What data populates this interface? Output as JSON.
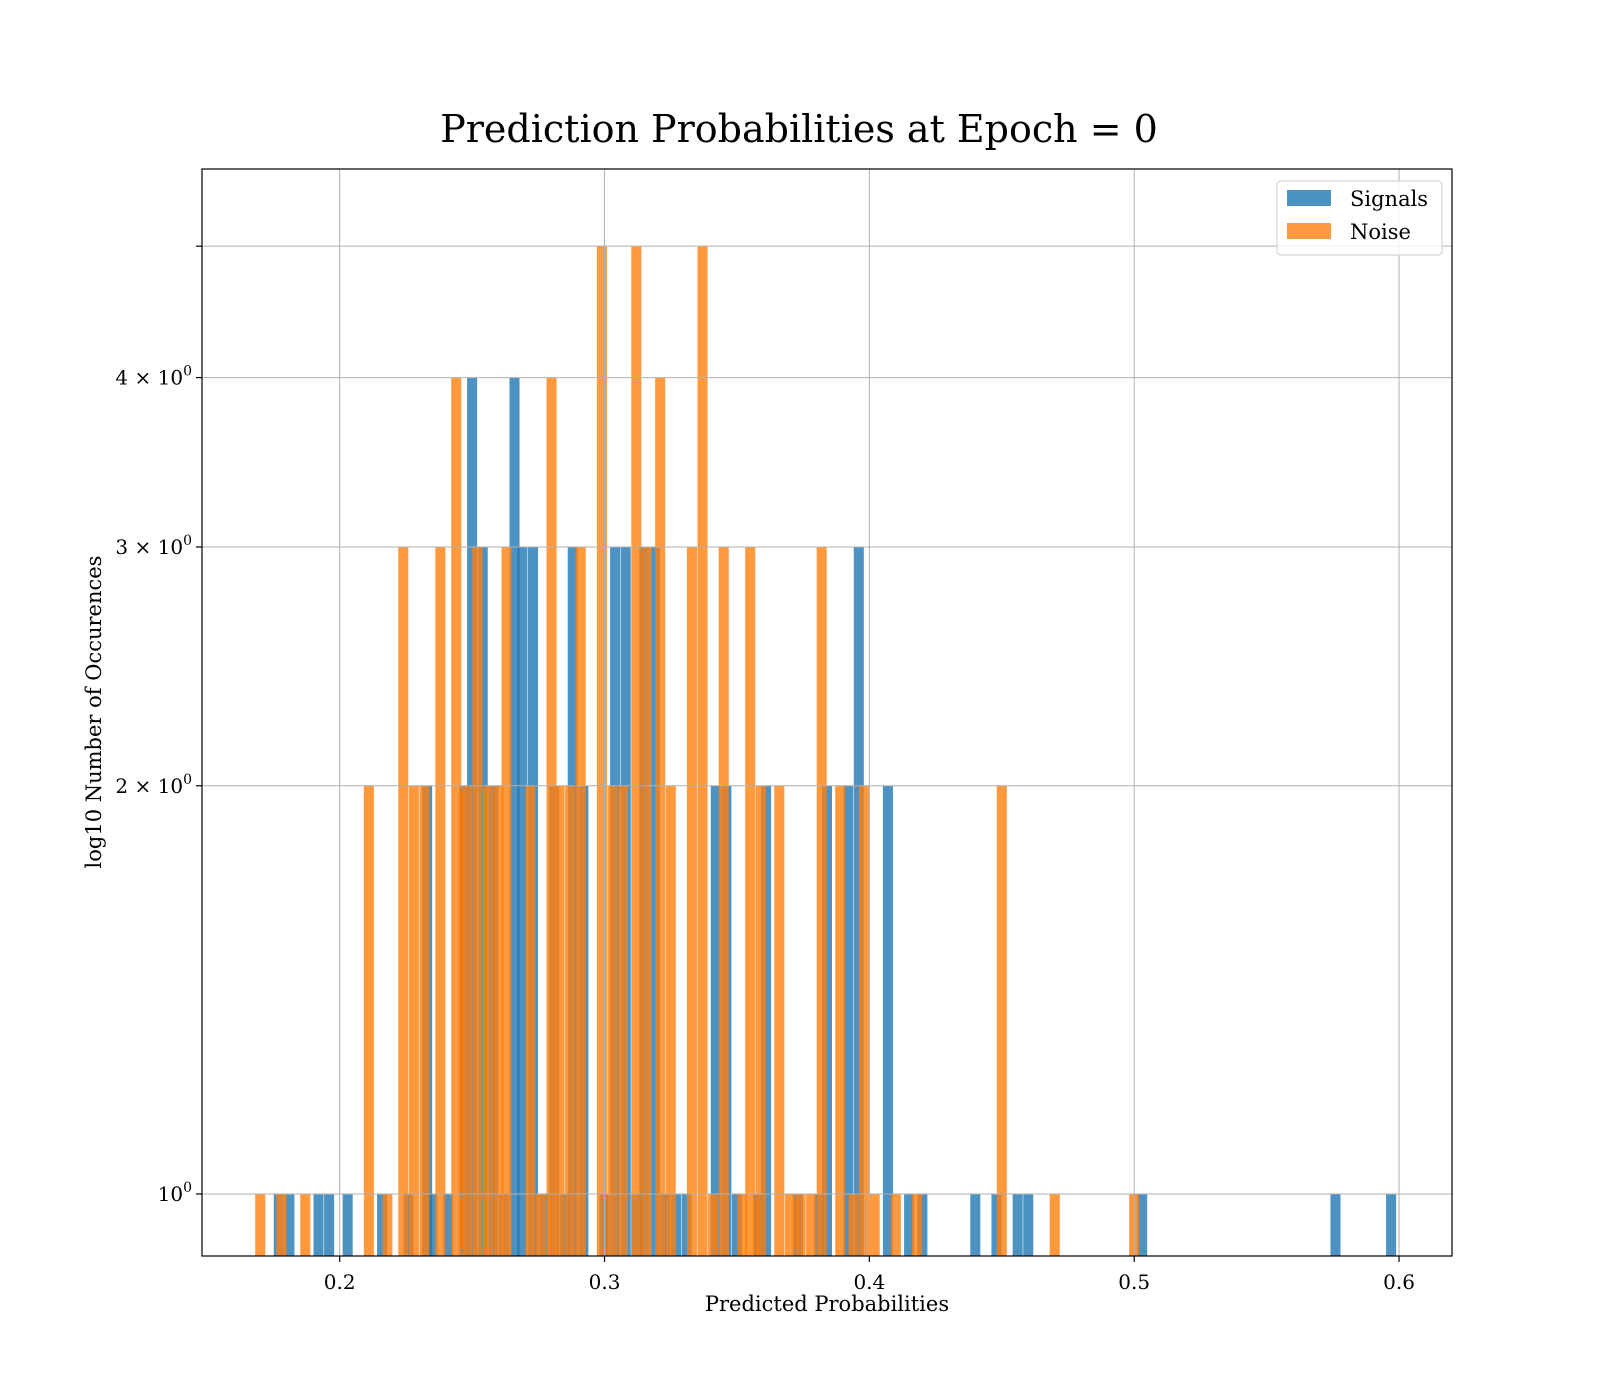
{
  "chart_data": {
    "type": "bar",
    "title": "Prediction Probabilities at Epoch = 0",
    "xlabel": "Predicted Probabilities",
    "ylabel": "log10 Number of Occurences",
    "yscale": "log",
    "xlim": [
      0.148,
      0.62
    ],
    "ylim": [
      0.9,
      5.7
    ],
    "grid": true,
    "legend_position": "top-right",
    "bin_width": 0.0038,
    "x_ticks": [
      {
        "value": 0.2,
        "label": "0.2"
      },
      {
        "value": 0.3,
        "label": "0.3"
      },
      {
        "value": 0.4,
        "label": "0.4"
      },
      {
        "value": 0.5,
        "label": "0.5"
      },
      {
        "value": 0.6,
        "label": "0.6"
      }
    ],
    "y_ticks": [
      {
        "value": 1,
        "base": "10",
        "exp": "0"
      },
      {
        "value": 2,
        "base": "2 × 10",
        "exp": "0"
      },
      {
        "value": 3,
        "base": "3 × 10",
        "exp": "0"
      },
      {
        "value": 4,
        "base": "4 × 10",
        "exp": "0"
      },
      {
        "value": 5,
        "base": "",
        "exp": ""
      }
    ],
    "series": [
      {
        "name": "Signals",
        "color": "#1f77b4",
        "opacity": 0.8,
        "x": [
          0.177,
          0.181,
          0.192,
          0.196,
          0.203,
          0.216,
          0.226,
          0.233,
          0.235,
          0.241,
          0.247,
          0.25,
          0.254,
          0.258,
          0.262,
          0.266,
          0.269,
          0.273,
          0.277,
          0.281,
          0.285,
          0.288,
          0.292,
          0.3,
          0.304,
          0.308,
          0.312,
          0.315,
          0.319,
          0.323,
          0.327,
          0.331,
          0.342,
          0.346,
          0.35,
          0.358,
          0.361,
          0.373,
          0.381,
          0.384,
          0.392,
          0.396,
          0.407,
          0.415,
          0.42,
          0.44,
          0.448,
          0.456,
          0.46,
          0.503,
          0.576,
          0.597
        ],
        "values": [
          1,
          1,
          1,
          1,
          1,
          1,
          1,
          2,
          1,
          1,
          2,
          4,
          3,
          2,
          1,
          4,
          3,
          3,
          1,
          2,
          1,
          3,
          2,
          1,
          3,
          3,
          1,
          3,
          3,
          1,
          1,
          1,
          2,
          2,
          1,
          1,
          2,
          1,
          1,
          2,
          2,
          3,
          2,
          1,
          1,
          1,
          1,
          1,
          1,
          1,
          1,
          1
        ]
      },
      {
        "name": "Noise",
        "color": "#ff7f0e",
        "opacity": 0.8,
        "x": [
          0.17,
          0.178,
          0.187,
          0.211,
          0.218,
          0.224,
          0.228,
          0.232,
          0.238,
          0.244,
          0.248,
          0.252,
          0.256,
          0.26,
          0.263,
          0.272,
          0.276,
          0.28,
          0.283,
          0.287,
          0.291,
          0.299,
          0.303,
          0.307,
          0.312,
          0.316,
          0.321,
          0.325,
          0.333,
          0.337,
          0.341,
          0.345,
          0.352,
          0.355,
          0.359,
          0.366,
          0.37,
          0.374,
          0.378,
          0.382,
          0.389,
          0.394,
          0.398,
          0.402,
          0.41,
          0.418,
          0.45,
          0.47,
          0.5
        ],
        "values": [
          1,
          1,
          1,
          2,
          1,
          3,
          2,
          2,
          3,
          4,
          2,
          3,
          2,
          2,
          3,
          2,
          1,
          4,
          2,
          2,
          3,
          5,
          2,
          2,
          5,
          3,
          4,
          2,
          3,
          5,
          1,
          3,
          1,
          3,
          2,
          2,
          1,
          1,
          1,
          3,
          2,
          1,
          2,
          1,
          1,
          1,
          2,
          1,
          1
        ]
      }
    ]
  }
}
